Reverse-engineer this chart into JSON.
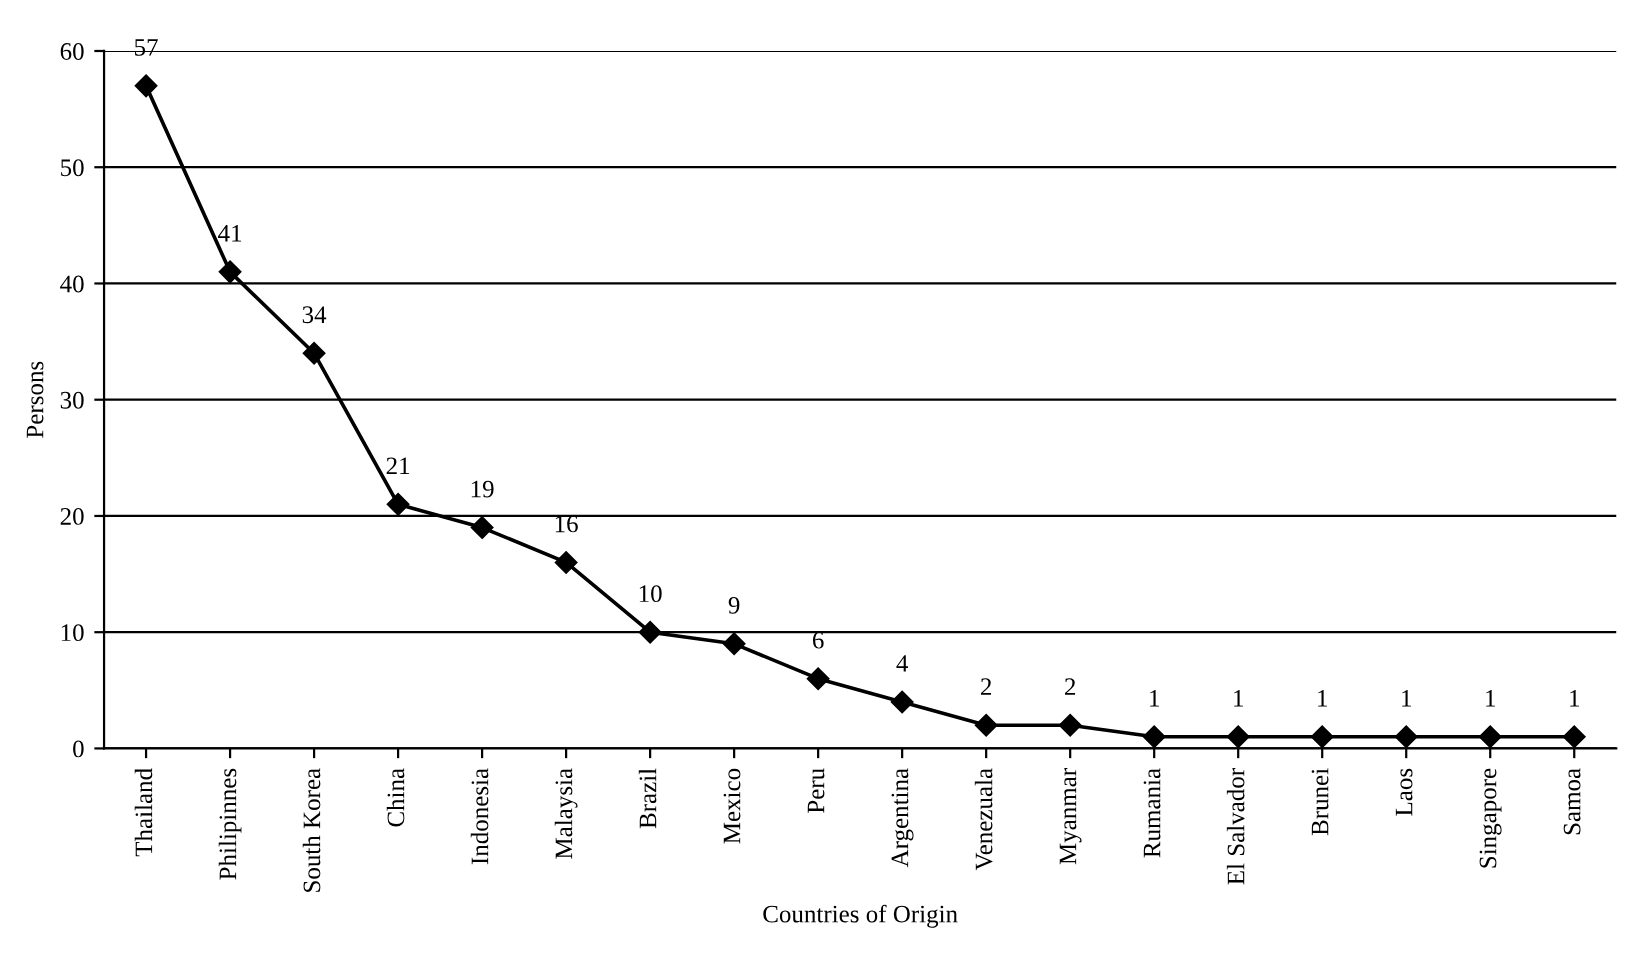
{
  "chart_data": {
    "type": "line",
    "xlabel": "Countries of Origin",
    "ylabel": "Persons",
    "categories": [
      "Thailand",
      "Philipinnes",
      "South Korea",
      "China",
      "Indonesia",
      "Malaysia",
      "Brazil",
      "Mexico",
      "Peru",
      "Argentina",
      "Venezuala",
      "Myanmar",
      "Rumania",
      "El Salvador",
      "Brunei",
      "Laos",
      "Singapore",
      "Samoa"
    ],
    "series": [
      {
        "color": "#000000",
        "values": [
          57,
          41,
          34,
          21,
          19,
          16,
          10,
          9,
          6,
          4,
          2,
          2,
          1,
          1,
          1,
          1,
          1,
          1
        ]
      }
    ],
    "ylim": [
      0,
      60
    ],
    "yticks": [
      0,
      10,
      20,
      30,
      40,
      50,
      60
    ],
    "grid": "y",
    "marker": "diamond",
    "line_style": "solid",
    "data_labels": true
  }
}
